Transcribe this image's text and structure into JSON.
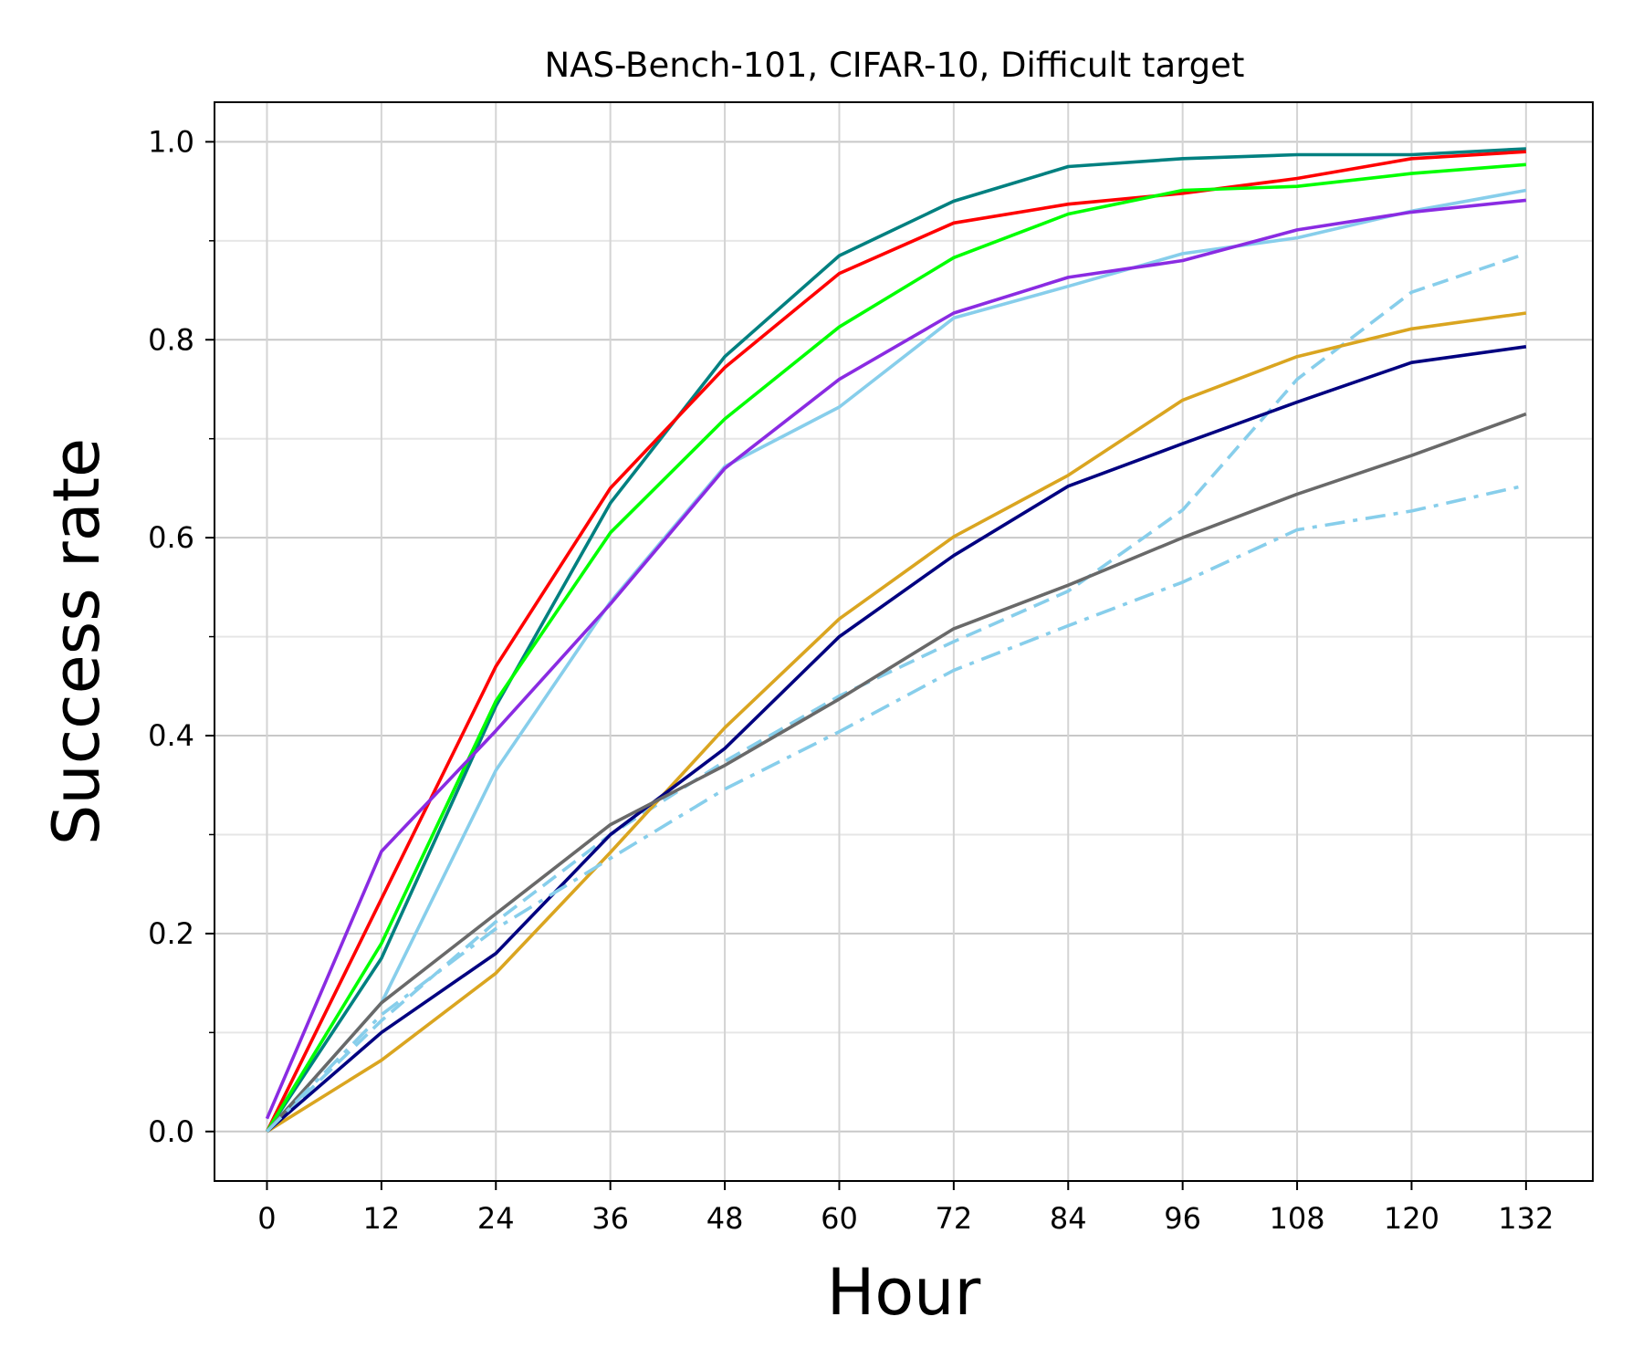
{
  "chart_data": {
    "type": "line",
    "title": "NAS-Bench-101, CIFAR-10, Difficult target",
    "xlabel": "Hour",
    "ylabel": "Success rate",
    "xlim": [
      -5.5,
      139
    ],
    "ylim": [
      -0.05,
      1.04
    ],
    "x": [
      0,
      12,
      24,
      36,
      48,
      60,
      72,
      84,
      96,
      108,
      120,
      132
    ],
    "xticks": [
      0,
      12,
      24,
      36,
      48,
      60,
      72,
      84,
      96,
      108,
      120,
      132
    ],
    "yticks": [
      0.0,
      0.2,
      0.4,
      0.6,
      0.8,
      1.0
    ],
    "yminor": [
      0.1,
      0.3,
      0.5,
      0.7,
      0.9
    ],
    "grid": true,
    "series": [
      {
        "name": "teal",
        "color": "#008080",
        "dash": "solid",
        "values": [
          0.0,
          0.175,
          0.43,
          0.635,
          0.783,
          0.885,
          0.94,
          0.975,
          0.983,
          0.987,
          0.987,
          0.993
        ]
      },
      {
        "name": "red",
        "color": "#ff0000",
        "dash": "solid",
        "values": [
          0.0,
          0.235,
          0.47,
          0.65,
          0.772,
          0.867,
          0.918,
          0.937,
          0.948,
          0.963,
          0.983,
          0.99
        ]
      },
      {
        "name": "green",
        "color": "#00ff00",
        "dash": "solid",
        "values": [
          0.0,
          0.19,
          0.435,
          0.605,
          0.72,
          0.813,
          0.883,
          0.927,
          0.951,
          0.955,
          0.968,
          0.977
        ]
      },
      {
        "name": "skyblue-solid",
        "color": "#87ceeb",
        "dash": "solid",
        "values": [
          0.0,
          0.13,
          0.365,
          0.535,
          0.672,
          0.732,
          0.822,
          0.854,
          0.887,
          0.903,
          0.93,
          0.951
        ]
      },
      {
        "name": "purple",
        "color": "#8a2be2",
        "dash": "solid",
        "values": [
          0.013,
          0.283,
          0.405,
          0.533,
          0.67,
          0.76,
          0.827,
          0.863,
          0.88,
          0.911,
          0.929,
          0.941
        ]
      },
      {
        "name": "skyblue-dashed",
        "color": "#87ceeb",
        "dash": "dashed",
        "values": [
          0.0,
          0.112,
          0.212,
          0.3,
          0.374,
          0.44,
          0.495,
          0.546,
          0.628,
          0.76,
          0.848,
          0.887
        ]
      },
      {
        "name": "goldenrod",
        "color": "#daa520",
        "dash": "solid",
        "values": [
          0.0,
          0.072,
          0.16,
          0.282,
          0.408,
          0.518,
          0.601,
          0.663,
          0.739,
          0.783,
          0.811,
          0.827
        ]
      },
      {
        "name": "navy",
        "color": "#000080",
        "dash": "solid",
        "values": [
          0.0,
          0.1,
          0.18,
          0.3,
          0.387,
          0.5,
          0.582,
          0.652,
          0.695,
          0.737,
          0.777,
          0.793
        ]
      },
      {
        "name": "gray",
        "color": "#696969",
        "dash": "solid",
        "values": [
          0.0,
          0.13,
          0.22,
          0.31,
          0.37,
          0.437,
          0.508,
          0.552,
          0.6,
          0.644,
          0.683,
          0.725
        ]
      },
      {
        "name": "skyblue-dashdot",
        "color": "#87ceeb",
        "dash": "dashdot",
        "values": [
          0.0,
          0.118,
          0.205,
          0.276,
          0.346,
          0.404,
          0.466,
          0.511,
          0.555,
          0.608,
          0.627,
          0.653
        ]
      }
    ]
  }
}
